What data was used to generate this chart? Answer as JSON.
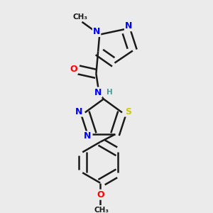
{
  "bg_color": "#ebebeb",
  "bond_color": "#1a1a1a",
  "bond_width": 1.8,
  "atom_colors": {
    "N": "#0000ff",
    "O": "#ff0000",
    "S": "#cccc00",
    "C": "#1a1a1a",
    "H": "#4a9a9a"
  },
  "font_size": 9,
  "fig_size": [
    3.0,
    3.0
  ],
  "dpi": 100
}
